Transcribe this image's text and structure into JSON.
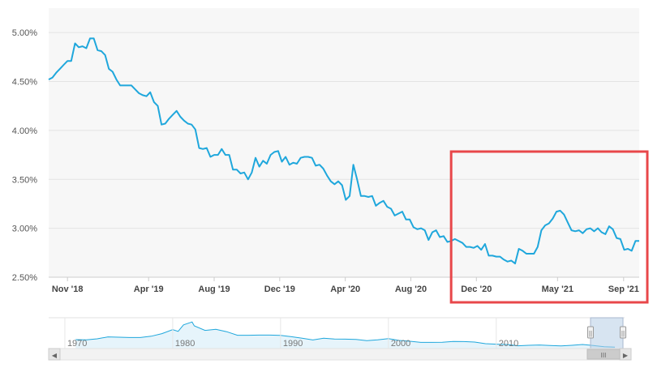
{
  "chart_data": {
    "type": "line",
    "title": "",
    "xlabel": "",
    "ylabel": "",
    "ylim": [
      2.5,
      5.25
    ],
    "y_ticks": [
      "2.50%",
      "3.00%",
      "3.50%",
      "4.00%",
      "4.50%",
      "5.00%"
    ],
    "y_tick_values": [
      2.5,
      3.0,
      3.5,
      4.0,
      4.5,
      5.0
    ],
    "x_range": [
      "2018-09-27",
      "2021-09-30"
    ],
    "x_ticks": [
      {
        "label": "Nov '18",
        "date": "2018-11-01"
      },
      {
        "label": "Apr '19",
        "date": "2019-04-01"
      },
      {
        "label": "Aug '19",
        "date": "2019-08-01"
      },
      {
        "label": "Dec '19",
        "date": "2019-12-01"
      },
      {
        "label": "Apr '20",
        "date": "2020-04-01"
      },
      {
        "label": "Aug '20",
        "date": "2020-08-01"
      },
      {
        "label": "Dec '20",
        "date": "2020-12-01"
      },
      {
        "label": "May '21",
        "date": "2021-05-01"
      },
      {
        "label": "Sep '21",
        "date": "2021-09-01"
      }
    ],
    "grid": true,
    "legend": "none",
    "line_color": "#1fa7dc",
    "highlight_box": {
      "from": "2020-10-15",
      "to": "2021-09-30",
      "color": "#e8474a"
    },
    "series": [
      {
        "values": [
          [
            "2018-09-27",
            4.52
          ],
          [
            "2018-10-04",
            4.54
          ],
          [
            "2018-10-11",
            4.59
          ],
          [
            "2018-10-18",
            4.63
          ],
          [
            "2018-10-25",
            4.67
          ],
          [
            "2018-11-01",
            4.71
          ],
          [
            "2018-11-08",
            4.71
          ],
          [
            "2018-11-15",
            4.89
          ],
          [
            "2018-11-22",
            4.85
          ],
          [
            "2018-11-29",
            4.86
          ],
          [
            "2018-12-06",
            4.84
          ],
          [
            "2018-12-13",
            4.94
          ],
          [
            "2018-12-20",
            4.94
          ],
          [
            "2018-12-27",
            4.82
          ],
          [
            "2019-01-03",
            4.81
          ],
          [
            "2019-01-10",
            4.77
          ],
          [
            "2019-01-17",
            4.63
          ],
          [
            "2019-01-24",
            4.6
          ],
          [
            "2019-01-31",
            4.52
          ],
          [
            "2019-02-07",
            4.46
          ],
          [
            "2019-02-14",
            4.46
          ],
          [
            "2019-02-21",
            4.46
          ],
          [
            "2019-02-28",
            4.46
          ],
          [
            "2019-03-07",
            4.42
          ],
          [
            "2019-03-14",
            4.38
          ],
          [
            "2019-03-21",
            4.36
          ],
          [
            "2019-03-28",
            4.35
          ],
          [
            "2019-04-04",
            4.39
          ],
          [
            "2019-04-11",
            4.29
          ],
          [
            "2019-04-18",
            4.25
          ],
          [
            "2019-04-25",
            4.06
          ],
          [
            "2019-05-02",
            4.07
          ],
          [
            "2019-05-09",
            4.12
          ],
          [
            "2019-05-16",
            4.16
          ],
          [
            "2019-05-23",
            4.2
          ],
          [
            "2019-05-30",
            4.14
          ],
          [
            "2019-06-06",
            4.1
          ],
          [
            "2019-06-13",
            4.07
          ],
          [
            "2019-06-20",
            4.06
          ],
          [
            "2019-06-27",
            4.01
          ],
          [
            "2019-07-04",
            3.82
          ],
          [
            "2019-07-11",
            3.81
          ],
          [
            "2019-07-18",
            3.82
          ],
          [
            "2019-07-25",
            3.73
          ],
          [
            "2019-08-01",
            3.75
          ],
          [
            "2019-08-08",
            3.75
          ],
          [
            "2019-08-15",
            3.81
          ],
          [
            "2019-08-22",
            3.75
          ],
          [
            "2019-08-29",
            3.75
          ],
          [
            "2019-09-05",
            3.6
          ],
          [
            "2019-09-12",
            3.6
          ],
          [
            "2019-09-19",
            3.56
          ],
          [
            "2019-09-26",
            3.57
          ],
          [
            "2019-10-03",
            3.5
          ],
          [
            "2019-10-10",
            3.57
          ],
          [
            "2019-10-17",
            3.72
          ],
          [
            "2019-10-24",
            3.63
          ],
          [
            "2019-10-31",
            3.69
          ],
          [
            "2019-11-07",
            3.66
          ],
          [
            "2019-11-14",
            3.75
          ],
          [
            "2019-11-21",
            3.78
          ],
          [
            "2019-11-28",
            3.79
          ],
          [
            "2019-12-05",
            3.68
          ],
          [
            "2019-12-12",
            3.73
          ],
          [
            "2019-12-19",
            3.65
          ],
          [
            "2019-12-26",
            3.67
          ],
          [
            "2020-01-02",
            3.66
          ],
          [
            "2020-01-09",
            3.72
          ],
          [
            "2020-01-16",
            3.73
          ],
          [
            "2020-01-23",
            3.73
          ],
          [
            "2020-01-30",
            3.72
          ],
          [
            "2020-02-06",
            3.64
          ],
          [
            "2020-02-13",
            3.65
          ],
          [
            "2020-02-20",
            3.61
          ],
          [
            "2020-02-27",
            3.54
          ],
          [
            "2020-03-05",
            3.48
          ],
          [
            "2020-03-12",
            3.45
          ],
          [
            "2020-03-19",
            3.48
          ],
          [
            "2020-03-26",
            3.44
          ],
          [
            "2020-04-02",
            3.29
          ],
          [
            "2020-04-09",
            3.33
          ],
          [
            "2020-04-16",
            3.65
          ],
          [
            "2020-04-23",
            3.5
          ],
          [
            "2020-04-30",
            3.33
          ],
          [
            "2020-05-07",
            3.33
          ],
          [
            "2020-05-14",
            3.32
          ],
          [
            "2020-05-21",
            3.33
          ],
          [
            "2020-05-28",
            3.23
          ],
          [
            "2020-06-04",
            3.26
          ],
          [
            "2020-06-11",
            3.28
          ],
          [
            "2020-06-18",
            3.22
          ],
          [
            "2020-06-25",
            3.2
          ],
          [
            "2020-07-02",
            3.13
          ],
          [
            "2020-07-09",
            3.15
          ],
          [
            "2020-07-16",
            3.17
          ],
          [
            "2020-07-23",
            3.09
          ],
          [
            "2020-07-30",
            3.09
          ],
          [
            "2020-08-06",
            3.01
          ],
          [
            "2020-08-13",
            2.99
          ],
          [
            "2020-08-20",
            3.0
          ],
          [
            "2020-08-27",
            2.98
          ],
          [
            "2020-09-03",
            2.88
          ],
          [
            "2020-09-10",
            2.96
          ],
          [
            "2020-09-17",
            2.98
          ],
          [
            "2020-09-24",
            2.91
          ],
          [
            "2020-10-01",
            2.92
          ],
          [
            "2020-10-08",
            2.86
          ],
          [
            "2020-10-15",
            2.87
          ],
          [
            "2020-10-22",
            2.89
          ],
          [
            "2020-10-29",
            2.87
          ],
          [
            "2020-11-05",
            2.85
          ],
          [
            "2020-11-12",
            2.81
          ],
          [
            "2020-11-19",
            2.81
          ],
          [
            "2020-11-26",
            2.8
          ],
          [
            "2020-12-03",
            2.82
          ],
          [
            "2020-12-10",
            2.78
          ],
          [
            "2020-12-17",
            2.84
          ],
          [
            "2020-12-24",
            2.72
          ],
          [
            "2020-12-31",
            2.72
          ],
          [
            "2021-01-07",
            2.71
          ],
          [
            "2021-01-14",
            2.71
          ],
          [
            "2021-01-21",
            2.68
          ],
          [
            "2021-01-28",
            2.66
          ],
          [
            "2021-02-04",
            2.67
          ],
          [
            "2021-02-11",
            2.64
          ],
          [
            "2021-02-18",
            2.79
          ],
          [
            "2021-02-25",
            2.77
          ],
          [
            "2021-03-04",
            2.74
          ],
          [
            "2021-03-11",
            2.74
          ],
          [
            "2021-03-18",
            2.74
          ],
          [
            "2021-03-25",
            2.81
          ],
          [
            "2021-04-01",
            2.98
          ],
          [
            "2021-04-08",
            3.03
          ],
          [
            "2021-04-15",
            3.05
          ],
          [
            "2021-04-22",
            3.1
          ],
          [
            "2021-04-29",
            3.17
          ],
          [
            "2021-05-06",
            3.18
          ],
          [
            "2021-05-13",
            3.14
          ],
          [
            "2021-05-20",
            3.06
          ],
          [
            "2021-05-27",
            2.98
          ],
          [
            "2021-06-03",
            2.97
          ],
          [
            "2021-06-10",
            2.98
          ],
          [
            "2021-06-17",
            2.95
          ],
          [
            "2021-06-24",
            2.99
          ],
          [
            "2021-07-01",
            3.0
          ],
          [
            "2021-07-08",
            2.97
          ],
          [
            "2021-07-15",
            3.0
          ],
          [
            "2021-07-22",
            2.96
          ],
          [
            "2021-07-29",
            2.94
          ],
          [
            "2021-08-05",
            3.02
          ],
          [
            "2021-08-12",
            2.99
          ],
          [
            "2021-08-19",
            2.9
          ],
          [
            "2021-08-26",
            2.89
          ],
          [
            "2021-09-02",
            2.78
          ],
          [
            "2021-09-09",
            2.79
          ],
          [
            "2021-09-16",
            2.77
          ],
          [
            "2021-09-23",
            2.87
          ],
          [
            "2021-09-30",
            2.87
          ]
        ]
      }
    ],
    "navigator": {
      "x_ticks": [
        "1970",
        "1980",
        "1990",
        "2000",
        "2010"
      ],
      "tick_years": [
        1970,
        1980,
        1990,
        2000,
        2010
      ],
      "x_range": [
        1968.5,
        2021.9
      ],
      "ylim": [
        2,
        19
      ],
      "selected_range": [
        2018.74,
        2021.75
      ],
      "handle_glyph": "||",
      "scrollbar_glyph": "III",
      "left_arrow": "◀",
      "right_arrow": "▶",
      "series": [
        [
          1971,
          7.5
        ],
        [
          1972,
          7.4
        ],
        [
          1973,
          8.0
        ],
        [
          1974,
          9.2
        ],
        [
          1975,
          9.0
        ],
        [
          1976,
          8.8
        ],
        [
          1977,
          8.8
        ],
        [
          1978,
          9.6
        ],
        [
          1979,
          11.2
        ],
        [
          1980,
          13.7
        ],
        [
          1980.5,
          12.6
        ],
        [
          1981,
          16.6
        ],
        [
          1981.8,
          18.4
        ],
        [
          1982,
          16.0
        ],
        [
          1983,
          13.2
        ],
        [
          1984,
          13.9
        ],
        [
          1985,
          12.4
        ],
        [
          1986,
          10.2
        ],
        [
          1987,
          10.2
        ],
        [
          1988,
          10.3
        ],
        [
          1989,
          10.3
        ],
        [
          1990,
          10.1
        ],
        [
          1991,
          9.3
        ],
        [
          1992,
          8.4
        ],
        [
          1993,
          7.3
        ],
        [
          1994,
          8.4
        ],
        [
          1995,
          7.9
        ],
        [
          1996,
          7.8
        ],
        [
          1997,
          7.6
        ],
        [
          1998,
          6.9
        ],
        [
          1999,
          7.4
        ],
        [
          2000,
          8.1
        ],
        [
          2001,
          7.0
        ],
        [
          2002,
          6.5
        ],
        [
          2003,
          5.8
        ],
        [
          2004,
          5.8
        ],
        [
          2005,
          5.9
        ],
        [
          2006,
          6.4
        ],
        [
          2007,
          6.3
        ],
        [
          2008,
          6.0
        ],
        [
          2009,
          5.0
        ],
        [
          2010,
          4.7
        ],
        [
          2011,
          4.5
        ],
        [
          2012,
          3.7
        ],
        [
          2013,
          4.0
        ],
        [
          2014,
          4.2
        ],
        [
          2015,
          3.9
        ],
        [
          2016,
          3.6
        ],
        [
          2017,
          4.0
        ],
        [
          2018,
          4.5
        ],
        [
          2019,
          3.9
        ],
        [
          2020,
          3.1
        ],
        [
          2021,
          2.9
        ]
      ]
    }
  }
}
